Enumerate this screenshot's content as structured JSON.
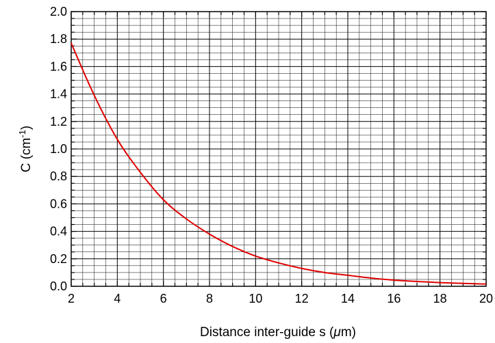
{
  "chart_data": {
    "type": "line",
    "xlabel": "Distance inter-guide s (μm)",
    "xlabel_parts": {
      "prefix": "Distance inter-guide s (",
      "unit_mu": "μ",
      "suffix": "m)"
    },
    "ylabel": "C (cm-1)",
    "ylabel_parts": {
      "prefix": "C (cm",
      "sup": "-1",
      "suffix": ")"
    },
    "xlim": [
      2,
      20
    ],
    "ylim": [
      0.0,
      2.0
    ],
    "x_ticks": [
      "2",
      "4",
      "6",
      "8",
      "10",
      "12",
      "14",
      "16",
      "18",
      "20"
    ],
    "y_ticks": [
      "0.0",
      "0.2",
      "0.4",
      "0.6",
      "0.8",
      "1.0",
      "1.2",
      "1.4",
      "1.6",
      "1.8",
      "2.0"
    ],
    "grid": true,
    "series": [
      {
        "color": "#e00000",
        "x": [
          2,
          3,
          4,
          5,
          6,
          7,
          8,
          9,
          10,
          11,
          12,
          13,
          14,
          15,
          16,
          17,
          18,
          19,
          20
        ],
        "y": [
          1.77,
          1.39,
          1.07,
          0.83,
          0.63,
          0.49,
          0.38,
          0.29,
          0.22,
          0.17,
          0.13,
          0.1,
          0.08,
          0.06,
          0.045,
          0.035,
          0.027,
          0.021,
          0.016
        ]
      }
    ]
  }
}
